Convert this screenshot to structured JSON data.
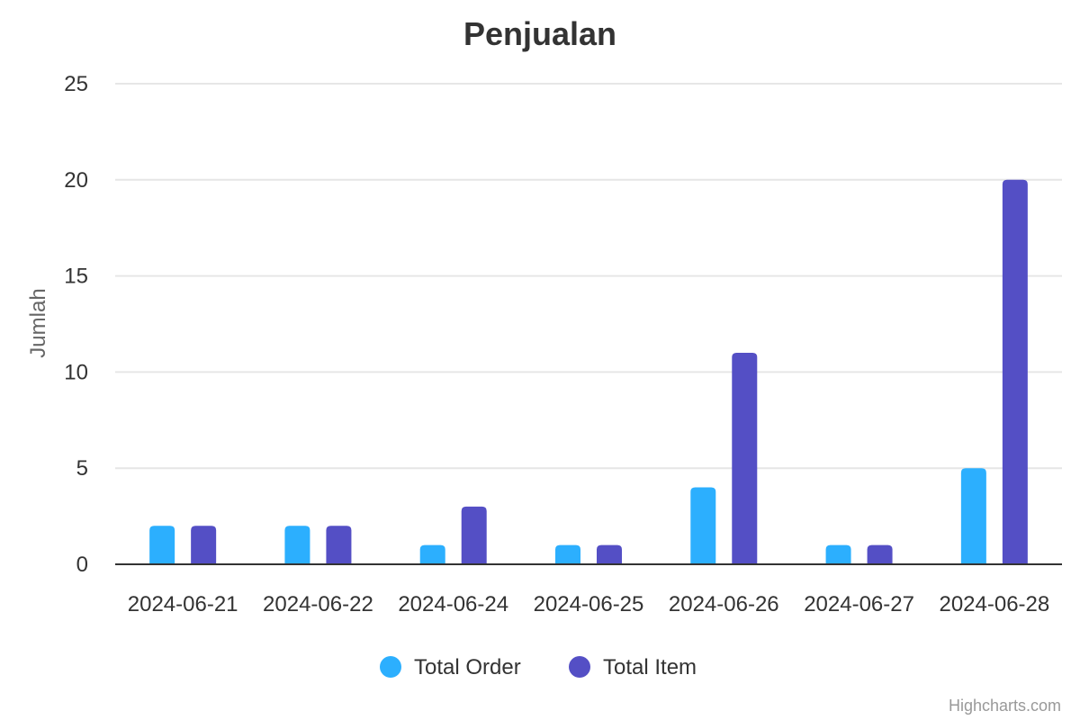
{
  "chart_data": {
    "type": "bar",
    "title": "Penjualan",
    "ylabel": "Jumlah",
    "xlabel": "",
    "ylim": [
      0,
      25
    ],
    "yticks": [
      0,
      5,
      10,
      15,
      20,
      25
    ],
    "grid": true,
    "legend_position": "bottom-center",
    "categories": [
      "2024-06-21",
      "2024-06-22",
      "2024-06-24",
      "2024-06-25",
      "2024-06-26",
      "2024-06-27",
      "2024-06-28"
    ],
    "series": [
      {
        "name": "Total Order",
        "color": "#2caffe",
        "values": [
          2,
          2,
          1,
          1,
          4,
          1,
          5
        ]
      },
      {
        "name": "Total Item",
        "color": "#544fc5",
        "values": [
          2,
          2,
          3,
          1,
          11,
          1,
          20
        ]
      }
    ]
  },
  "credits": "Highcharts.com"
}
